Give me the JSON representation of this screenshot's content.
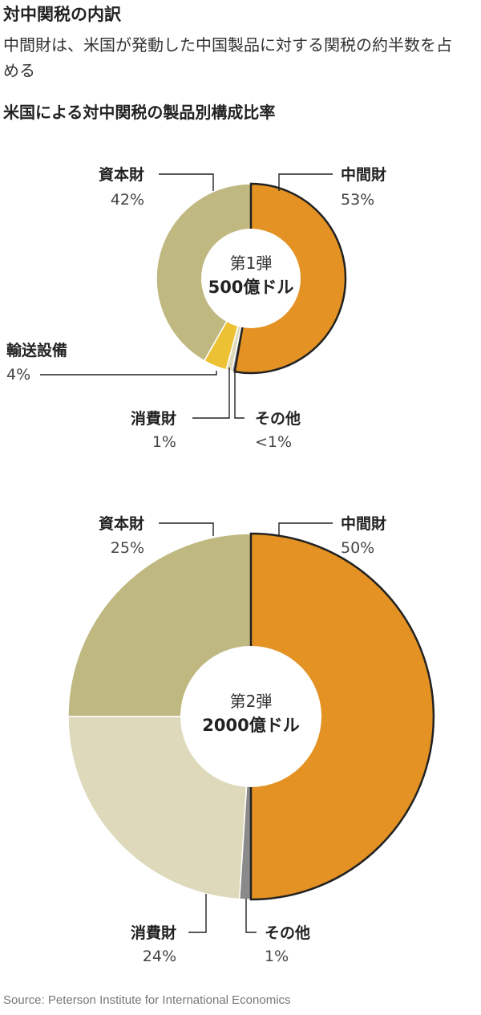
{
  "header": {
    "title": "対中関税の内訳",
    "subtitle": "中間財は、米国が発動した中国製品に対する関税の約半数を占める",
    "chart_heading": "米国による対中関税の製品別構成比率"
  },
  "chart_data": [
    {
      "type": "pie",
      "center_label_top": "第1弾",
      "center_label_bottom": "500億ドル",
      "slices": [
        {
          "name": "中間財",
          "value": 53,
          "value_label": "53%",
          "color": "#e39223"
        },
        {
          "name": "その他",
          "value": 0.5,
          "value_label": "<1%",
          "color": "#8a8a8a"
        },
        {
          "name": "消費財",
          "value": 1,
          "value_label": "1%",
          "color": "#ddd9ba"
        },
        {
          "name": "輸送設備",
          "value": 4,
          "value_label": "4%",
          "color": "#ecc234"
        },
        {
          "name": "資本財",
          "value": 42,
          "value_label": "42%",
          "color": "#c0b881"
        }
      ]
    },
    {
      "type": "pie",
      "center_label_top": "第2弾",
      "center_label_bottom": "2000億ドル",
      "slices": [
        {
          "name": "中間財",
          "value": 50,
          "value_label": "50%",
          "color": "#e39223"
        },
        {
          "name": "その他",
          "value": 1,
          "value_label": "1%",
          "color": "#8a8a8a"
        },
        {
          "name": "消費財",
          "value": 24,
          "value_label": "24%",
          "color": "#ddd9ba"
        },
        {
          "name": "資本財",
          "value": 25,
          "value_label": "25%",
          "color": "#c0b881"
        }
      ]
    }
  ],
  "source": "Source: Peterson Institute for International Economics"
}
